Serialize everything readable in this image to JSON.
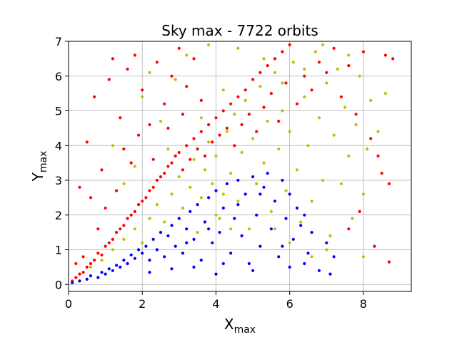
{
  "chart_data": {
    "type": "scatter",
    "title": "Sky max - 7722 orbits",
    "xlabel": {
      "main": "X",
      "sub": "max"
    },
    "ylabel": {
      "main": "Y",
      "sub": "max"
    },
    "xlim": [
      0,
      9.3
    ],
    "ylim": [
      -0.2,
      7
    ],
    "xticks": [
      0,
      2,
      4,
      6,
      8
    ],
    "yticks": [
      0,
      1,
      2,
      3,
      4,
      5,
      6,
      7
    ],
    "grid": true,
    "legend": "none",
    "series": [
      {
        "color": "#bfbf00",
        "points": [
          [
            0.6,
            0.5
          ],
          [
            0.9,
            0.7
          ],
          [
            1.2,
            1.0
          ],
          [
            1.5,
            1.3
          ],
          [
            1.8,
            1.6
          ],
          [
            2.0,
            1.2
          ],
          [
            2.2,
            1.9
          ],
          [
            2.4,
            2.3
          ],
          [
            2.6,
            1.8
          ],
          [
            2.8,
            2.6
          ],
          [
            3.0,
            3.1
          ],
          [
            3.1,
            2.2
          ],
          [
            3.3,
            2.8
          ],
          [
            3.4,
            3.6
          ],
          [
            3.5,
            1.5
          ],
          [
            3.6,
            2.5
          ],
          [
            3.7,
            3.3
          ],
          [
            3.8,
            4.1
          ],
          [
            3.9,
            2.9
          ],
          [
            4.0,
            3.7
          ],
          [
            4.1,
            1.9
          ],
          [
            4.2,
            2.6
          ],
          [
            4.3,
            4.4
          ],
          [
            4.4,
            3.2
          ],
          [
            4.5,
            4.9
          ],
          [
            4.6,
            2.4
          ],
          [
            4.7,
            3.8
          ],
          [
            4.8,
            5.3
          ],
          [
            4.9,
            1.6
          ],
          [
            5.0,
            4.2
          ],
          [
            5.1,
            2.9
          ],
          [
            5.2,
            5.7
          ],
          [
            5.3,
            3.5
          ],
          [
            5.4,
            4.7
          ],
          [
            5.5,
            2.1
          ],
          [
            5.6,
            6.1
          ],
          [
            5.7,
            3.9
          ],
          [
            5.8,
            5.0
          ],
          [
            5.9,
            2.7
          ],
          [
            6.0,
            4.4
          ],
          [
            6.1,
            6.4
          ],
          [
            6.2,
            3.3
          ],
          [
            6.3,
            1.8
          ],
          [
            6.4,
            5.4
          ],
          [
            6.5,
            4.0
          ],
          [
            6.6,
            2.4
          ],
          [
            6.7,
            6.7
          ],
          [
            6.8,
            4.8
          ],
          [
            6.9,
            3.0
          ],
          [
            7.0,
            5.8
          ],
          [
            7.1,
            1.4
          ],
          [
            7.2,
            4.3
          ],
          [
            7.3,
            6.2
          ],
          [
            7.4,
            2.9
          ],
          [
            7.5,
            5.1
          ],
          [
            7.6,
            3.7
          ],
          [
            7.7,
            1.9
          ],
          [
            7.8,
            4.6
          ],
          [
            7.9,
            6.0
          ],
          [
            8.0,
            2.6
          ],
          [
            8.1,
            3.9
          ],
          [
            8.2,
            5.3
          ],
          [
            8.3,
            1.1
          ],
          [
            8.4,
            4.4
          ],
          [
            8.6,
            5.5
          ],
          [
            8.0,
            0.8
          ],
          [
            7.0,
            1.0
          ],
          [
            6.6,
            0.8
          ],
          [
            6.0,
            1.2
          ],
          [
            5.6,
            1.6
          ],
          [
            2.0,
            5.4
          ],
          [
            2.2,
            6.1
          ],
          [
            2.5,
            4.7
          ],
          [
            1.8,
            3.4
          ],
          [
            2.9,
            5.9
          ],
          [
            3.2,
            6.6
          ],
          [
            1.5,
            2.9
          ],
          [
            1.2,
            4.0
          ],
          [
            2.7,
            3.9
          ],
          [
            3.8,
            6.9
          ],
          [
            4.6,
            6.8
          ],
          [
            5.3,
            6.5
          ],
          [
            6.9,
            6.9
          ],
          [
            4.2,
            5.6
          ],
          [
            3.6,
            4.8
          ],
          [
            5.8,
            5.8
          ],
          [
            6.4,
            6.2
          ],
          [
            7.6,
            6.6
          ],
          [
            4.0,
            2.0
          ],
          [
            4.4,
            1.6
          ]
        ]
      },
      {
        "color": "#ff0000",
        "points": [
          [
            0.1,
            0.1
          ],
          [
            0.2,
            0.2
          ],
          [
            0.3,
            0.3
          ],
          [
            0.4,
            0.35
          ],
          [
            0.5,
            0.5
          ],
          [
            0.6,
            0.6
          ],
          [
            0.7,
            0.7
          ],
          [
            0.8,
            0.9
          ],
          [
            0.9,
            0.85
          ],
          [
            1.0,
            1.1
          ],
          [
            1.1,
            1.2
          ],
          [
            1.2,
            1.3
          ],
          [
            1.3,
            1.5
          ],
          [
            1.4,
            1.6
          ],
          [
            1.5,
            1.7
          ],
          [
            1.6,
            1.9
          ],
          [
            1.7,
            2.0
          ],
          [
            1.8,
            2.1
          ],
          [
            1.9,
            2.3
          ],
          [
            2.0,
            2.4
          ],
          [
            2.1,
            2.5
          ],
          [
            2.2,
            2.7
          ],
          [
            2.3,
            2.8
          ],
          [
            2.4,
            3.0
          ],
          [
            2.5,
            3.1
          ],
          [
            2.6,
            3.2
          ],
          [
            2.7,
            3.4
          ],
          [
            2.8,
            3.5
          ],
          [
            2.9,
            3.7
          ],
          [
            3.0,
            3.8
          ],
          [
            3.1,
            3.3
          ],
          [
            3.2,
            4.0
          ],
          [
            3.3,
            3.6
          ],
          [
            3.4,
            4.2
          ],
          [
            3.5,
            3.9
          ],
          [
            3.6,
            4.4
          ],
          [
            3.7,
            3.7
          ],
          [
            3.8,
            4.6
          ],
          [
            3.9,
            4.1
          ],
          [
            4.0,
            4.8
          ],
          [
            4.1,
            4.3
          ],
          [
            4.2,
            5.0
          ],
          [
            4.3,
            4.5
          ],
          [
            4.4,
            5.2
          ],
          [
            4.5,
            4.0
          ],
          [
            4.6,
            5.4
          ],
          [
            4.7,
            4.6
          ],
          [
            4.8,
            5.6
          ],
          [
            4.9,
            4.9
          ],
          [
            5.0,
            5.9
          ],
          [
            5.1,
            4.4
          ],
          [
            5.2,
            6.1
          ],
          [
            5.3,
            5.1
          ],
          [
            5.4,
            6.3
          ],
          [
            5.5,
            5.5
          ],
          [
            5.6,
            6.5
          ],
          [
            5.7,
            4.7
          ],
          [
            5.8,
            6.7
          ],
          [
            5.9,
            5.8
          ],
          [
            6.0,
            6.9
          ],
          [
            6.2,
            5.2
          ],
          [
            6.4,
            6.0
          ],
          [
            6.6,
            5.6
          ],
          [
            6.8,
            6.4
          ],
          [
            7.0,
            6.1
          ],
          [
            7.2,
            6.8
          ],
          [
            7.4,
            5.4
          ],
          [
            7.6,
            6.3
          ],
          [
            7.8,
            4.9
          ],
          [
            8.0,
            6.7
          ],
          [
            8.2,
            4.2
          ],
          [
            8.4,
            3.7
          ],
          [
            8.6,
            6.6
          ],
          [
            8.8,
            6.5
          ],
          [
            8.7,
            2.9
          ],
          [
            8.5,
            3.2
          ],
          [
            8.7,
            0.65
          ],
          [
            8.3,
            1.1
          ],
          [
            7.9,
            2.1
          ],
          [
            7.6,
            1.6
          ],
          [
            0.3,
            2.8
          ],
          [
            0.5,
            4.1
          ],
          [
            0.6,
            2.5
          ],
          [
            0.7,
            5.4
          ],
          [
            0.9,
            3.3
          ],
          [
            1.1,
            5.9
          ],
          [
            1.2,
            6.5
          ],
          [
            1.4,
            4.8
          ],
          [
            1.6,
            6.2
          ],
          [
            1.7,
            3.5
          ],
          [
            1.8,
            6.6
          ],
          [
            2.0,
            5.6
          ],
          [
            2.2,
            4.6
          ],
          [
            2.4,
            6.4
          ],
          [
            2.6,
            5.2
          ],
          [
            2.8,
            6.0
          ],
          [
            3.0,
            6.8
          ],
          [
            3.2,
            5.7
          ],
          [
            3.4,
            6.5
          ],
          [
            3.6,
            5.3
          ],
          [
            1.5,
            3.9
          ],
          [
            1.9,
            4.3
          ],
          [
            2.3,
            3.6
          ],
          [
            1.3,
            2.7
          ],
          [
            0.8,
            1.6
          ],
          [
            1.0,
            2.2
          ],
          [
            2.7,
            4.5
          ],
          [
            3.1,
            4.9
          ],
          [
            0.4,
            0.8
          ],
          [
            0.2,
            0.6
          ]
        ]
      },
      {
        "color": "#0000ff",
        "points": [
          [
            0.1,
            0.05
          ],
          [
            0.3,
            0.1
          ],
          [
            0.5,
            0.15
          ],
          [
            0.6,
            0.25
          ],
          [
            0.8,
            0.2
          ],
          [
            0.9,
            0.35
          ],
          [
            1.0,
            0.3
          ],
          [
            1.1,
            0.45
          ],
          [
            1.2,
            0.4
          ],
          [
            1.3,
            0.55
          ],
          [
            1.4,
            0.5
          ],
          [
            1.5,
            0.7
          ],
          [
            1.6,
            0.6
          ],
          [
            1.7,
            0.85
          ],
          [
            1.8,
            0.75
          ],
          [
            1.9,
            1.0
          ],
          [
            2.0,
            0.9
          ],
          [
            2.1,
            1.1
          ],
          [
            2.2,
            0.7
          ],
          [
            2.3,
            1.3
          ],
          [
            2.4,
            1.0
          ],
          [
            2.5,
            1.5
          ],
          [
            2.6,
            0.8
          ],
          [
            2.7,
            1.4
          ],
          [
            2.8,
            1.7
          ],
          [
            2.9,
            1.1
          ],
          [
            3.0,
            1.9
          ],
          [
            3.1,
            0.9
          ],
          [
            3.2,
            1.6
          ],
          [
            3.3,
            2.1
          ],
          [
            3.4,
            1.3
          ],
          [
            3.5,
            2.3
          ],
          [
            3.6,
            0.7
          ],
          [
            3.7,
            1.8
          ],
          [
            3.8,
            2.5
          ],
          [
            3.9,
            1.2
          ],
          [
            4.0,
            2.7
          ],
          [
            4.1,
            1.5
          ],
          [
            4.2,
            2.2
          ],
          [
            4.3,
            2.9
          ],
          [
            4.4,
            0.9
          ],
          [
            4.5,
            1.9
          ],
          [
            4.6,
            3.0
          ],
          [
            4.7,
            1.4
          ],
          [
            4.8,
            2.6
          ],
          [
            4.9,
            0.6
          ],
          [
            5.0,
            3.1
          ],
          [
            5.1,
            2.0
          ],
          [
            5.2,
            1.1
          ],
          [
            5.3,
            2.8
          ],
          [
            5.4,
            3.2
          ],
          [
            5.5,
            1.6
          ],
          [
            5.6,
            2.4
          ],
          [
            5.7,
            0.8
          ],
          [
            5.8,
            3.0
          ],
          [
            5.9,
            1.9
          ],
          [
            6.0,
            2.6
          ],
          [
            6.1,
            1.3
          ],
          [
            6.2,
            2.2
          ],
          [
            6.3,
            1.7
          ],
          [
            6.4,
            2.0
          ],
          [
            6.5,
            0.9
          ],
          [
            6.6,
            1.5
          ],
          [
            6.8,
            0.4
          ],
          [
            7.0,
            1.2
          ],
          [
            7.1,
            0.3
          ],
          [
            7.2,
            0.8
          ],
          [
            6.0,
            0.5
          ],
          [
            5.0,
            0.4
          ],
          [
            4.2,
            0.6
          ],
          [
            3.4,
            0.5
          ],
          [
            2.8,
            0.45
          ],
          [
            2.2,
            0.35
          ],
          [
            4.6,
            2.3
          ],
          [
            5.2,
            2.6
          ],
          [
            3.8,
            1.6
          ],
          [
            3.2,
            1.2
          ],
          [
            4.0,
            0.3
          ],
          [
            5.8,
            1.1
          ],
          [
            6.4,
            0.6
          ]
        ]
      }
    ]
  }
}
